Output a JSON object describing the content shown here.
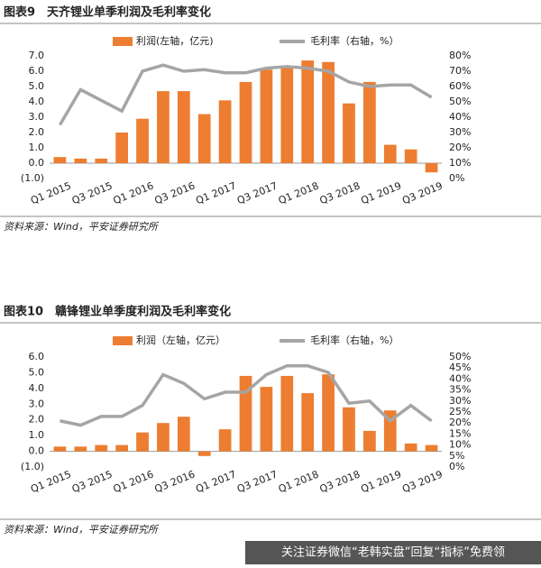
{
  "chart_data": [
    {
      "type": "bar_line",
      "title": "图表9　天齐锂业单季利润及毛利率变化",
      "categories": [
        "Q1 2015",
        null,
        "Q3 2015",
        null,
        "Q1 2016",
        null,
        "Q3 2016",
        null,
        "Q1 2017",
        null,
        "Q3 2017",
        null,
        "Q1 2018",
        null,
        "Q3 2018",
        null,
        "Q1 2019",
        null,
        "Q3 2019"
      ],
      "series": [
        {
          "name": "利润(左轴，亿元)",
          "color": "#ED7D31",
          "values": [
            0.4,
            0.3,
            0.3,
            2.0,
            2.9,
            4.7,
            4.7,
            3.2,
            4.1,
            5.3,
            6.1,
            6.3,
            6.7,
            6.6,
            3.9,
            5.3,
            1.2,
            0.9,
            -0.6
          ]
        },
        {
          "name": "毛利率（右轴，%）",
          "color": "#A5A5A5",
          "axis": "y2",
          "values": [
            35,
            58,
            51,
            44,
            70,
            74,
            70,
            71,
            69,
            69,
            72,
            73,
            72,
            70,
            63,
            60,
            61,
            61,
            53
          ]
        }
      ],
      "ylim": [
        -1,
        7
      ],
      "yticks": [
        {
          "value": -1,
          "label": "(1.0)"
        },
        {
          "value": 0,
          "label": "0.0"
        },
        {
          "value": 1,
          "label": "1.0"
        },
        {
          "value": 2,
          "label": "2.0"
        },
        {
          "value": 3,
          "label": "3.0"
        },
        {
          "value": 4,
          "label": "4.0"
        },
        {
          "value": 5,
          "label": "5.0"
        },
        {
          "value": 6,
          "label": "6.0"
        },
        {
          "value": 7,
          "label": "7.0"
        }
      ],
      "y2lim": [
        0,
        80
      ],
      "y2ticks": [
        {
          "value": 0,
          "label": "0%"
        },
        {
          "value": 10,
          "label": "10%"
        },
        {
          "value": 20,
          "label": "20%"
        },
        {
          "value": 30,
          "label": "30%"
        },
        {
          "value": 40,
          "label": "40%"
        },
        {
          "value": 50,
          "label": "50%"
        },
        {
          "value": 60,
          "label": "60%"
        },
        {
          "value": 70,
          "label": "70%"
        },
        {
          "value": 80,
          "label": "80%"
        }
      ],
      "source": "资料来源：Wind，平安证券研究所"
    },
    {
      "type": "bar_line",
      "title": "图表10　赣锋锂业单季度利润及毛利率变化",
      "categories": [
        "Q1 2015",
        null,
        "Q3 2015",
        null,
        "Q1 2016",
        null,
        "Q3 2016",
        null,
        "Q1 2017",
        null,
        "Q3 2017",
        null,
        "Q1 2018",
        null,
        "Q3 2018",
        null,
        "Q1 2019",
        null,
        "Q3 2019"
      ],
      "series": [
        {
          "name": "利润（左轴，亿元）",
          "color": "#ED7D31",
          "values": [
            0.3,
            0.3,
            0.4,
            0.4,
            1.2,
            1.8,
            2.2,
            -0.3,
            1.4,
            4.8,
            4.1,
            4.8,
            3.7,
            4.9,
            2.8,
            1.3,
            2.6,
            0.5,
            0.4
          ]
        },
        {
          "name": "毛利率（右轴，%）",
          "color": "#A5A5A5",
          "axis": "y2",
          "values": [
            21,
            19,
            23,
            23,
            28,
            42,
            38,
            31,
            34,
            34,
            42,
            46,
            46,
            43,
            29,
            30,
            21,
            28,
            21
          ]
        }
      ],
      "ylim": [
        -1,
        6
      ],
      "yticks": [
        {
          "value": -1,
          "label": "(1.0)"
        },
        {
          "value": 0,
          "label": "0.0"
        },
        {
          "value": 1,
          "label": "1.0"
        },
        {
          "value": 2,
          "label": "2.0"
        },
        {
          "value": 3,
          "label": "3.0"
        },
        {
          "value": 4,
          "label": "4.0"
        },
        {
          "value": 5,
          "label": "5.0"
        },
        {
          "value": 6,
          "label": "6.0"
        }
      ],
      "y2lim": [
        0,
        50
      ],
      "y2ticks": [
        {
          "value": 0,
          "label": "0%"
        },
        {
          "value": 5,
          "label": "5%"
        },
        {
          "value": 10,
          "label": "10%"
        },
        {
          "value": 15,
          "label": "15%"
        },
        {
          "value": 20,
          "label": "20%"
        },
        {
          "value": 25,
          "label": "25%"
        },
        {
          "value": 30,
          "label": "30%"
        },
        {
          "value": 35,
          "label": "35%"
        },
        {
          "value": 40,
          "label": "40%"
        },
        {
          "value": 45,
          "label": "45%"
        },
        {
          "value": 50,
          "label": "50%"
        }
      ],
      "source": "资料来源：Wind，平安证券研究所"
    }
  ],
  "banner": "关注证券微信“老韩实盘”回复“指标”免费领"
}
